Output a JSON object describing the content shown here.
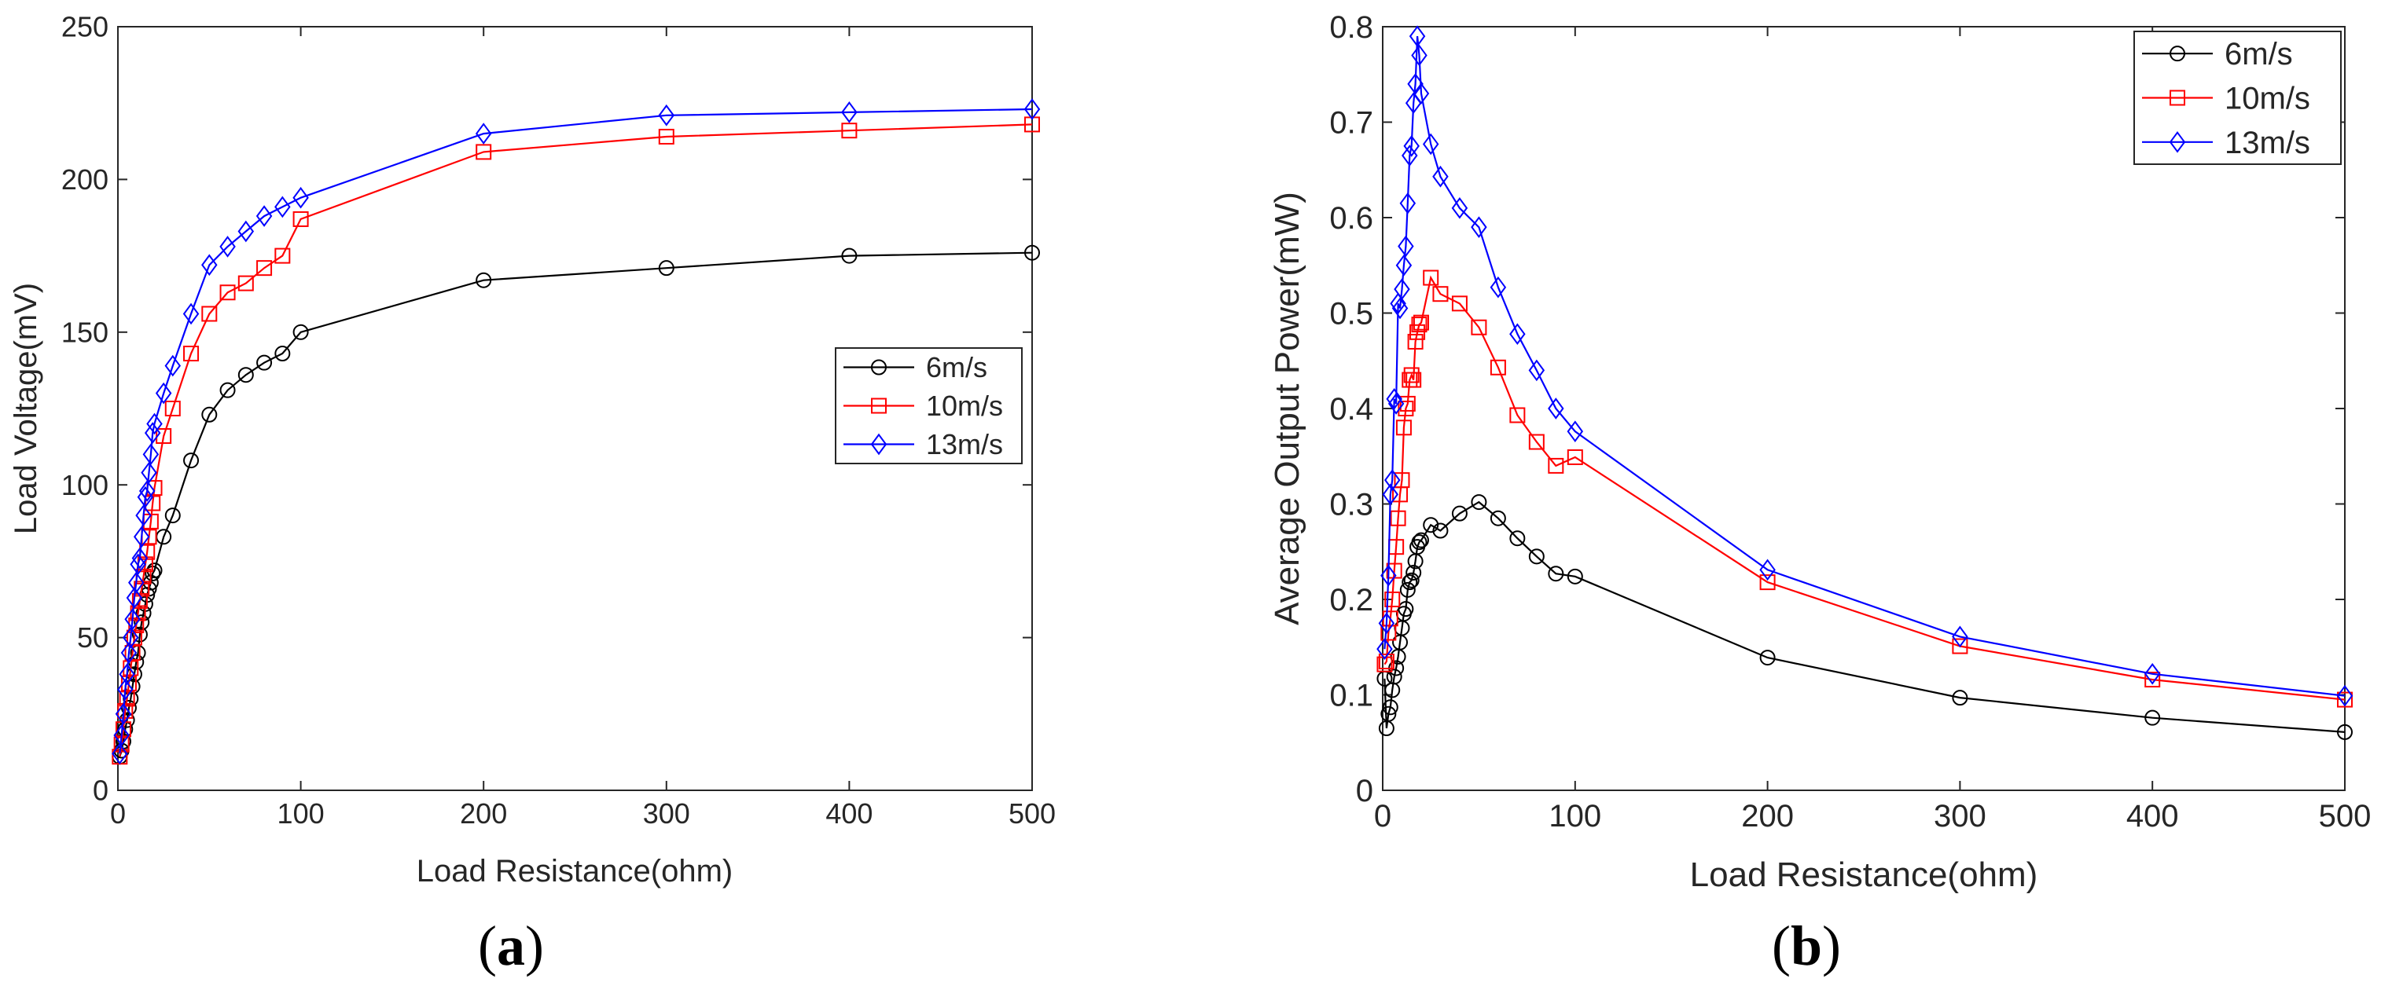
{
  "chart_data": [
    {
      "id": "a",
      "type": "line",
      "caption_letter": "a",
      "xlabel": "Load Resistance(ohm)",
      "ylabel": "Load Voltage(mV)",
      "xlim": [
        0,
        500
      ],
      "ylim": [
        0,
        250
      ],
      "xticks": [
        0,
        100,
        200,
        300,
        400,
        500
      ],
      "yticks": [
        0,
        50,
        100,
        150,
        200,
        250
      ],
      "grid": false,
      "legend_position": "center-right",
      "series": [
        {
          "name": "6m/s",
          "color": "#000000",
          "marker": "circle",
          "x": [
            1,
            2,
            3,
            4,
            5,
            6,
            7,
            8,
            9,
            10,
            11,
            12,
            13,
            14,
            15,
            16,
            17,
            18,
            19,
            20,
            25,
            30,
            40,
            50,
            60,
            70,
            80,
            90,
            100,
            200,
            300,
            400,
            500
          ],
          "y": [
            11,
            13,
            16,
            20,
            23,
            27,
            30,
            34,
            38,
            42,
            45,
            51,
            55,
            58,
            61,
            64,
            66,
            68,
            71,
            72,
            83,
            90,
            108,
            123,
            131,
            136,
            140,
            143,
            150,
            167,
            171,
            175,
            176
          ]
        },
        {
          "name": "10m/s",
          "color": "#ff0000",
          "marker": "square",
          "x": [
            1,
            2,
            3,
            4,
            5,
            6,
            7,
            8,
            9,
            10,
            11,
            12,
            13,
            14,
            15,
            16,
            17,
            18,
            19,
            20,
            25,
            30,
            40,
            50,
            60,
            70,
            80,
            90,
            100,
            200,
            300,
            400,
            500
          ],
          "y": [
            11,
            15,
            20,
            26,
            30,
            35,
            40,
            45,
            50,
            54,
            58,
            62,
            66,
            70,
            74,
            78,
            83,
            88,
            94,
            99,
            116,
            125,
            143,
            156,
            163,
            166,
            171,
            175,
            187,
            209,
            214,
            216,
            218
          ]
        },
        {
          "name": "13m/s",
          "color": "#0000ff",
          "marker": "diamond",
          "x": [
            1,
            2,
            3,
            4,
            5,
            6,
            7,
            8,
            9,
            10,
            11,
            12,
            13,
            14,
            15,
            16,
            17,
            18,
            19,
            20,
            25,
            30,
            40,
            50,
            60,
            70,
            80,
            90,
            100,
            200,
            300,
            400,
            500
          ],
          "y": [
            12,
            18,
            25,
            33,
            38,
            45,
            50,
            56,
            63,
            68,
            74,
            76,
            83,
            90,
            96,
            98,
            104,
            110,
            117,
            120,
            130,
            139,
            156,
            172,
            178,
            183,
            188,
            191,
            194,
            215,
            221,
            222,
            223
          ]
        }
      ]
    },
    {
      "id": "b",
      "type": "line",
      "caption_letter": "b",
      "xlabel": "Load Resistance(ohm)",
      "ylabel": "Average Output Power(mW)",
      "xlim": [
        0,
        500
      ],
      "ylim": [
        0,
        0.8
      ],
      "xticks": [
        0,
        100,
        200,
        300,
        400,
        500
      ],
      "yticks": [
        0,
        0.1,
        0.2,
        0.3,
        0.4,
        0.5,
        0.6,
        0.7,
        0.8
      ],
      "grid": false,
      "legend_position": "top-right",
      "series": [
        {
          "name": "6m/s",
          "color": "#000000",
          "marker": "circle",
          "x": [
            1,
            2,
            3,
            4,
            5,
            6,
            7,
            8,
            9,
            10,
            11,
            12,
            13,
            14,
            15,
            16,
            17,
            18,
            19,
            20,
            25,
            30,
            40,
            50,
            60,
            70,
            80,
            90,
            100,
            200,
            300,
            400,
            500
          ],
          "y": [
            0.117,
            0.065,
            0.08,
            0.087,
            0.105,
            0.119,
            0.128,
            0.14,
            0.155,
            0.17,
            0.185,
            0.19,
            0.21,
            0.218,
            0.22,
            0.228,
            0.24,
            0.255,
            0.26,
            0.262,
            0.278,
            0.272,
            0.29,
            0.302,
            0.285,
            0.264,
            0.245,
            0.227,
            0.224,
            0.139,
            0.097,
            0.076,
            0.061
          ]
        },
        {
          "name": "10m/s",
          "color": "#ff0000",
          "marker": "square",
          "x": [
            1,
            2,
            3,
            4,
            5,
            6,
            7,
            8,
            9,
            10,
            11,
            12,
            13,
            14,
            15,
            16,
            17,
            18,
            19,
            20,
            25,
            30,
            40,
            50,
            60,
            70,
            80,
            90,
            100,
            200,
            300,
            400,
            500
          ],
          "y": [
            0.132,
            0.135,
            0.165,
            0.18,
            0.2,
            0.23,
            0.255,
            0.285,
            0.31,
            0.325,
            0.38,
            0.4,
            0.405,
            0.43,
            0.435,
            0.43,
            0.47,
            0.48,
            0.488,
            0.49,
            0.537,
            0.52,
            0.51,
            0.485,
            0.443,
            0.393,
            0.365,
            0.34,
            0.349,
            0.218,
            0.151,
            0.116,
            0.095
          ]
        },
        {
          "name": "13m/s",
          "color": "#0000ff",
          "marker": "diamond",
          "x": [
            1,
            2,
            3,
            4,
            5,
            6,
            7,
            8,
            9,
            10,
            11,
            12,
            13,
            14,
            15,
            16,
            17,
            18,
            19,
            20,
            25,
            30,
            40,
            50,
            60,
            70,
            80,
            90,
            100,
            200,
            300,
            400,
            500
          ],
          "y": [
            0.148,
            0.175,
            0.225,
            0.31,
            0.325,
            0.41,
            0.405,
            0.51,
            0.505,
            0.525,
            0.55,
            0.57,
            0.615,
            0.665,
            0.675,
            0.72,
            0.74,
            0.79,
            0.77,
            0.73,
            0.677,
            0.643,
            0.61,
            0.59,
            0.527,
            0.478,
            0.44,
            0.4,
            0.376,
            0.231,
            0.161,
            0.122,
            0.099
          ]
        }
      ]
    }
  ]
}
